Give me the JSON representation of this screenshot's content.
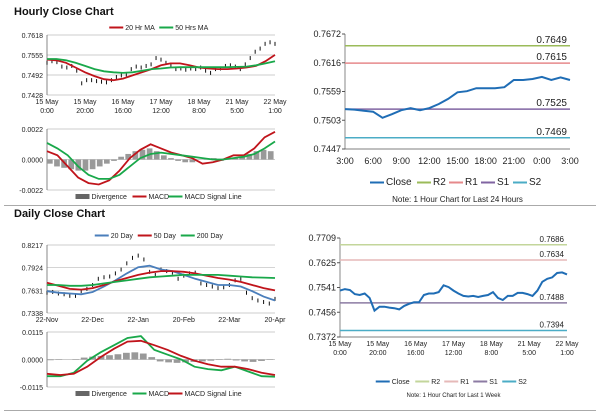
{
  "hourly_title": "Hourly Close Chart",
  "daily_title": "Daily Close Chart",
  "chart_data": [
    {
      "id": "hourly-week",
      "type": "line",
      "yticks": [
        "0.7618",
        "0.7555",
        "0.7492",
        "0.7428"
      ],
      "ylim": [
        0.7428,
        0.7618
      ],
      "xticks": [
        [
          "15 May",
          "0:00"
        ],
        [
          "15 May",
          "20:00"
        ],
        [
          "16 May",
          "16:00"
        ],
        [
          "17 May",
          "12:00"
        ],
        [
          "18 May",
          "8:00"
        ],
        [
          "21 May",
          "5:00"
        ],
        [
          "22 May",
          "1:00"
        ]
      ],
      "close": [
        0.753,
        0.7535,
        0.7532,
        0.7518,
        0.7515,
        0.752,
        0.7505,
        0.7465,
        0.7475,
        0.7475,
        0.7472,
        0.747,
        0.7468,
        0.7475,
        0.7485,
        0.749,
        0.7493,
        0.751,
        0.7518,
        0.7515,
        0.752,
        0.7525,
        0.7545,
        0.754,
        0.753,
        0.752,
        0.751,
        0.7512,
        0.7508,
        0.7512,
        0.751,
        0.7515,
        0.7505,
        0.7498,
        0.751,
        0.7512,
        0.752,
        0.7522,
        0.7518,
        0.751,
        0.7525,
        0.7545,
        0.7565,
        0.7575,
        0.759,
        0.7595,
        0.759
      ],
      "series": [
        {
          "name": "20 Hr MA",
          "color": "#c0141b",
          "values": [
            0.754,
            0.7538,
            0.753,
            0.7515,
            0.75,
            0.7488,
            0.7478,
            0.7475,
            0.748,
            0.749,
            0.75,
            0.751,
            0.7522,
            0.7528,
            0.7528,
            0.7522,
            0.7515,
            0.7512,
            0.751,
            0.751,
            0.7512,
            0.7515,
            0.752,
            0.7535,
            0.7555
          ]
        },
        {
          "name": "50 Hrs MA",
          "color": "#19a84a",
          "values": [
            0.7542,
            0.7542,
            0.7538,
            0.753,
            0.752,
            0.751,
            0.7503,
            0.75,
            0.7498,
            0.75,
            0.7505,
            0.751,
            0.7512,
            0.7515,
            0.7516,
            0.7516,
            0.7516,
            0.7516,
            0.7516,
            0.7516,
            0.7517,
            0.7518,
            0.7522,
            0.7528,
            0.7535
          ]
        }
      ]
    },
    {
      "id": "hourly-macd",
      "type": "line",
      "yticks": [
        "0.0022",
        "0.0000",
        "-0.0022"
      ],
      "ylim": [
        -0.0022,
        0.0022
      ],
      "divergence": [
        -0.0003,
        -0.0005,
        -0.0006,
        -0.0007,
        -0.0008,
        -0.0008,
        -0.0007,
        -0.0005,
        -0.0003,
        -0.0001,
        0.0002,
        0.0004,
        0.0006,
        0.0007,
        0.0008,
        0.0006,
        0.0003,
        0.0001,
        -0.0001,
        -0.0002,
        -0.0002,
        0,
        0.0001,
        0.0001,
        -0.0001,
        0,
        0.0001,
        0.0002,
        0.0004,
        0.0006,
        0.0007,
        0.0006
      ],
      "series": [
        {
          "name": "MACD",
          "color": "#c0141b",
          "values": [
            0.0006,
            0.0003,
            -0.0005,
            -0.0013,
            -0.0017,
            -0.0018,
            -0.0015,
            -0.0008,
            0.0001,
            0.0007,
            0.0011,
            0.0008,
            0.0005,
            0.0003,
            0.0001,
            -0.0003,
            -0.0002,
            0,
            0.0003,
            0.0003,
            0.0008,
            0.0016,
            0.002
          ]
        },
        {
          "name": "MACD Signal Line",
          "color": "#19a84a",
          "values": [
            0.0012,
            0.0008,
            0.0003,
            -0.0005,
            -0.0011,
            -0.0014,
            -0.0014,
            -0.0011,
            -0.0005,
            0.0001,
            0.0004,
            0.0005,
            0.0004,
            0.0003,
            0.0002,
            0.0001,
            0,
            0,
            0.0001,
            0.0002,
            0.0004,
            0.0008,
            0.0013
          ]
        },
        {
          "name": "Divergence",
          "color": "#666666",
          "values": []
        }
      ]
    },
    {
      "id": "daily",
      "type": "line",
      "yticks": [
        "0.8217",
        "0.7924",
        "0.7631",
        "0.7338"
      ],
      "ylim": [
        0.7338,
        0.8217
      ],
      "xticks": [
        "22-Nov",
        "22-Dec",
        "22-Jan",
        "20-Feb",
        "22-Mar",
        "20-Apr"
      ],
      "close": [
        0.76,
        0.761,
        0.759,
        0.758,
        0.756,
        0.756,
        0.762,
        0.765,
        0.77,
        0.778,
        0.78,
        0.781,
        0.785,
        0.79,
        0.798,
        0.805,
        0.808,
        0.803,
        0.787,
        0.783,
        0.79,
        0.788,
        0.786,
        0.778,
        0.782,
        0.785,
        0.786,
        0.772,
        0.77,
        0.768,
        0.766,
        0.767,
        0.77,
        0.776,
        0.778,
        0.76,
        0.753,
        0.75,
        0.748,
        0.746,
        0.752
      ],
      "series": [
        {
          "name": "20 Day",
          "color": "#4a7ebb",
          "values": [
            0.762,
            0.76,
            0.759,
            0.758,
            0.761,
            0.768,
            0.776,
            0.785,
            0.793,
            0.795,
            0.79,
            0.788,
            0.783,
            0.778,
            0.774,
            0.77,
            0.77,
            0.768,
            0.762,
            0.755,
            0.75
          ]
        },
        {
          "name": "50 Day",
          "color": "#c0141b",
          "values": [
            0.773,
            0.769,
            0.765,
            0.764,
            0.766,
            0.77,
            0.775,
            0.779,
            0.783,
            0.786,
            0.788,
            0.788,
            0.787,
            0.785,
            0.782,
            0.779,
            0.777,
            0.774,
            0.77,
            0.766,
            0.763
          ]
        },
        {
          "name": "200 Day",
          "color": "#19a84a",
          "values": [
            0.77,
            0.77,
            0.769,
            0.769,
            0.77,
            0.772,
            0.774,
            0.776,
            0.778,
            0.78,
            0.781,
            0.782,
            0.783,
            0.783,
            0.783,
            0.783,
            0.782,
            0.781,
            0.78,
            0.7795,
            0.779
          ]
        }
      ]
    },
    {
      "id": "daily-macd",
      "type": "line",
      "yticks": [
        "0.0115",
        "0.0000",
        "-0.0115"
      ],
      "ylim": [
        -0.0115,
        0.0115
      ],
      "divergence": [
        -0.0003,
        -0.0002,
        0,
        0.0002,
        0.0008,
        0.0012,
        0.0015,
        0.0018,
        0.0022,
        0.0028,
        0.003,
        0.0025,
        0.001,
        -0.0008,
        -0.0012,
        -0.0014,
        -0.0012,
        -0.001,
        -0.0008,
        -0.0005,
        -0.0002,
        0.0003,
        -0.0004,
        -0.0008,
        -0.001,
        -0.0006,
        -0.0002
      ],
      "series": [
        {
          "name": "MACD",
          "color": "#19a84a",
          "values": [
            -0.007,
            -0.007,
            -0.0055,
            -0.0005,
            0.003,
            0.006,
            0.009,
            0.0098,
            0.004,
            0.002,
            0,
            -0.003,
            -0.004,
            -0.0045,
            -0.003,
            -0.005,
            -0.007,
            -0.0072
          ]
        },
        {
          "name": "MACD Signal Line",
          "color": "#c0141b",
          "values": [
            -0.006,
            -0.0065,
            -0.006,
            -0.003,
            0.001,
            0.0045,
            0.0075,
            0.0078,
            0.006,
            0.004,
            0.0015,
            -0.0005,
            -0.002,
            -0.003,
            -0.003,
            -0.004,
            -0.0055,
            -0.0065
          ]
        },
        {
          "name": "Divergence",
          "color": "#666666",
          "values": []
        }
      ]
    },
    {
      "id": "last-24h",
      "type": "line",
      "yticks": [
        "0.7672",
        "0.7616",
        "0.7559",
        "0.7503",
        "0.7447"
      ],
      "ylim": [
        0.7447,
        0.7672
      ],
      "xticks": [
        "3:00",
        "6:00",
        "9:00",
        "12:00",
        "15:00",
        "18:00",
        "21:00",
        "0:00",
        "3:00"
      ],
      "levels": [
        {
          "name": "R2",
          "value": "0.7649",
          "color": "#9bbb59"
        },
        {
          "name": "R1",
          "value": "0.7615",
          "color": "#e6898b"
        },
        {
          "name": "S1",
          "value": "0.7525",
          "color": "#8064a2"
        },
        {
          "name": "S2",
          "value": "0.7469",
          "color": "#4bacc6"
        }
      ],
      "series": [
        {
          "name": "Close",
          "color": "#1f6db5",
          "values": [
            0.7525,
            0.7524,
            0.7522,
            0.752,
            0.7508,
            0.7515,
            0.7523,
            0.7527,
            0.7523,
            0.7527,
            0.7535,
            0.7545,
            0.7558,
            0.756,
            0.7566,
            0.7566,
            0.7566,
            0.7568,
            0.7582,
            0.7582,
            0.7584,
            0.7588,
            0.7582,
            0.7587,
            0.7582
          ]
        }
      ],
      "note": "Note: 1 Hour Chart for Last 24 Hours"
    },
    {
      "id": "last-week",
      "type": "line",
      "yticks": [
        "0.7709",
        "0.7625",
        "0.7541",
        "0.7456",
        "0.7372"
      ],
      "ylim": [
        0.7372,
        0.7709
      ],
      "xticks": [
        [
          "15 May",
          "0:00"
        ],
        [
          "15 May",
          "20:00"
        ],
        [
          "16 May",
          "16:00"
        ],
        [
          "17 May",
          "12:00"
        ],
        [
          "18 May",
          "8:00"
        ],
        [
          "21 May",
          "5:00"
        ],
        [
          "22 May",
          "1:00"
        ]
      ],
      "levels": [
        {
          "name": "R2",
          "value": "0.7686",
          "color": "#c3d69b"
        },
        {
          "name": "R1",
          "value": "0.7634",
          "color": "#e6b9b8"
        },
        {
          "name": "S1",
          "value": "0.7488",
          "color": "#8c7ba3"
        },
        {
          "name": "S2",
          "value": "0.7394",
          "color": "#4bacc6"
        }
      ],
      "series": [
        {
          "name": "Close",
          "color": "#1f6db5",
          "values": [
            0.753,
            0.7535,
            0.7532,
            0.7518,
            0.7515,
            0.752,
            0.7505,
            0.7462,
            0.7475,
            0.7475,
            0.7472,
            0.747,
            0.7466,
            0.7478,
            0.7485,
            0.749,
            0.749,
            0.7515,
            0.752,
            0.752,
            0.7525,
            0.7548,
            0.7542,
            0.753,
            0.752,
            0.7512,
            0.751,
            0.7512,
            0.7508,
            0.7512,
            0.7515,
            0.7525,
            0.7505,
            0.7498,
            0.7512,
            0.7512,
            0.7522,
            0.7522,
            0.7518,
            0.7512,
            0.753,
            0.756,
            0.757,
            0.7575,
            0.759,
            0.7592,
            0.7585
          ]
        }
      ],
      "note": "Note: 1 Hour Chart for Last 1 Week"
    }
  ]
}
